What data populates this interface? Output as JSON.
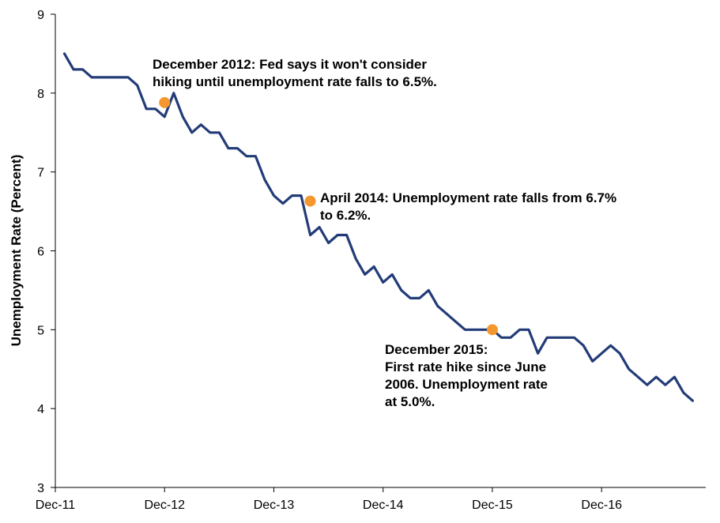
{
  "chart_data": {
    "type": "line",
    "title": "",
    "xlabel": "",
    "ylabel": "Unemployment Rate (Percent)",
    "ylim": [
      3,
      9
    ],
    "yticks": [
      "3",
      "4",
      "5",
      "6",
      "7",
      "8",
      "9"
    ],
    "xticks": [
      "Dec-11",
      "Dec-12",
      "Dec-13",
      "Dec-14",
      "Dec-15",
      "Dec-16"
    ],
    "grid": false,
    "series_color": "#233C78",
    "marker_color": "#F4972F",
    "x": [
      "Jan-12",
      "Feb-12",
      "Mar-12",
      "Apr-12",
      "May-12",
      "Jun-12",
      "Jul-12",
      "Aug-12",
      "Sep-12",
      "Oct-12",
      "Nov-12",
      "Dec-12",
      "Jan-13",
      "Feb-13",
      "Mar-13",
      "Apr-13",
      "May-13",
      "Jun-13",
      "Jul-13",
      "Aug-13",
      "Sep-13",
      "Oct-13",
      "Nov-13",
      "Dec-13",
      "Jan-14",
      "Feb-14",
      "Mar-14",
      "Apr-14",
      "May-14",
      "Jun-14",
      "Jul-14",
      "Aug-14",
      "Sep-14",
      "Oct-14",
      "Nov-14",
      "Dec-14",
      "Jan-15",
      "Feb-15",
      "Mar-15",
      "Apr-15",
      "May-15",
      "Jun-15",
      "Jul-15",
      "Aug-15",
      "Sep-15",
      "Oct-15",
      "Nov-15",
      "Dec-15",
      "Jan-16",
      "Feb-16",
      "Mar-16",
      "Apr-16",
      "May-16",
      "Jun-16",
      "Jul-16",
      "Aug-16",
      "Sep-16",
      "Oct-16",
      "Nov-16",
      "Dec-16",
      "Jan-17",
      "Feb-17",
      "Mar-17",
      "Apr-17",
      "May-17",
      "Jun-17",
      "Jul-17",
      "Aug-17",
      "Sep-17",
      "Oct-17"
    ],
    "series": [
      {
        "values": [
          8.5,
          8.3,
          8.3,
          8.2,
          8.2,
          8.2,
          8.2,
          8.2,
          8.1,
          7.8,
          7.8,
          7.7,
          8.0,
          7.7,
          7.5,
          7.6,
          7.5,
          7.5,
          7.3,
          7.3,
          7.2,
          7.2,
          6.9,
          6.7,
          6.6,
          6.7,
          6.7,
          6.2,
          6.3,
          6.1,
          6.2,
          6.2,
          5.9,
          5.7,
          5.8,
          5.6,
          5.7,
          5.5,
          5.4,
          5.4,
          5.5,
          5.3,
          5.2,
          5.1,
          5.0,
          5.0,
          5.0,
          5.0,
          4.9,
          4.9,
          5.0,
          5.0,
          4.7,
          4.9,
          4.9,
          4.9,
          4.9,
          4.8,
          4.6,
          4.7,
          4.8,
          4.7,
          4.5,
          4.4,
          4.3,
          4.4,
          4.3,
          4.4,
          4.2,
          4.1
        ]
      }
    ],
    "annotations": [
      {
        "x": "Dec-12",
        "y": 7.88,
        "lines": [
          "December 2012: Fed says it won't consider",
          "hiking until unemployment rate falls to 6.5%."
        ]
      },
      {
        "x": "Apr-14",
        "y": 6.63,
        "lines": [
          "April 2014: Unemployment rate falls from 6.7%",
          "to 6.2%."
        ]
      },
      {
        "x": "Dec-15",
        "y": 5.0,
        "lines": [
          "December 2015:",
          "First rate hike since June",
          "2006. Unemployment rate",
          "at 5.0%."
        ]
      }
    ]
  }
}
